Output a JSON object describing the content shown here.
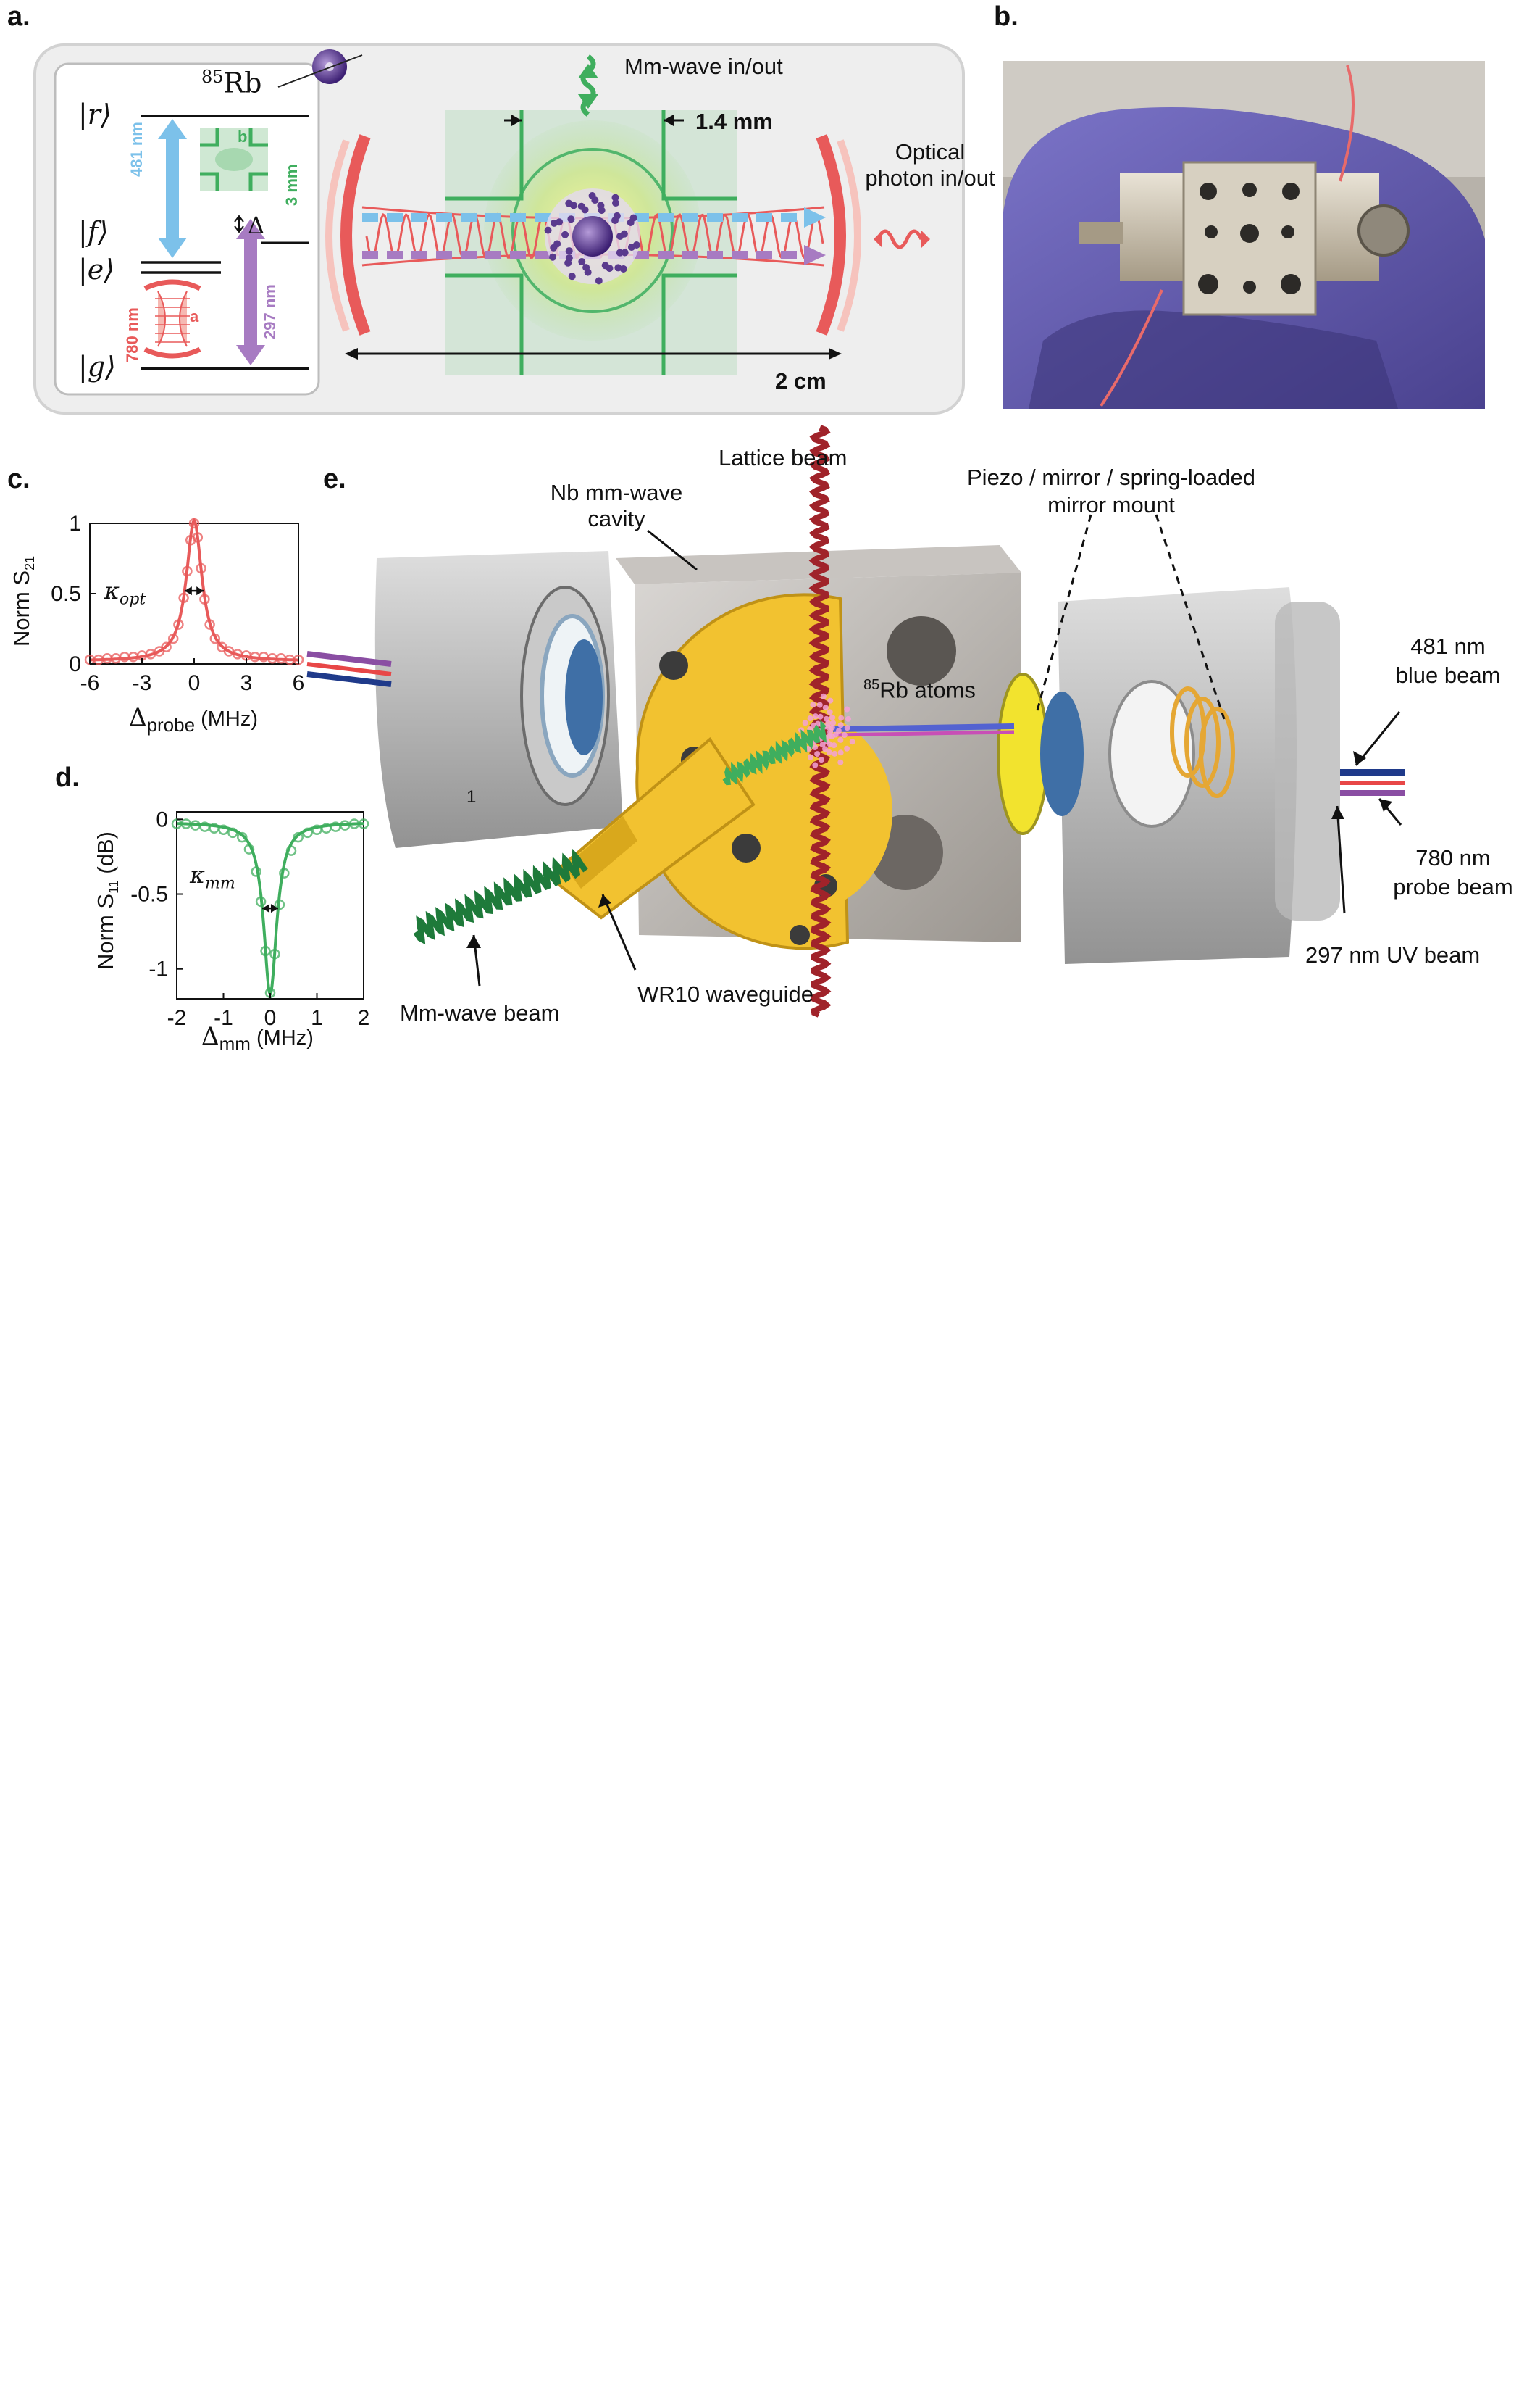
{
  "panels": {
    "a": "a.",
    "b": "b.",
    "c": "c.",
    "d": "d.",
    "e": "e."
  },
  "panel_a": {
    "isotope_sup": "85",
    "isotope": "Rb",
    "state_r": "|r⟩",
    "state_f": "|f⟩",
    "state_e": "|e⟩",
    "state_g": "|g⟩",
    "wl_481": "481 nm",
    "wl_297": "297 nm",
    "wl_780": "780 nm",
    "cavity_a": "a",
    "cavity_b": "b",
    "size_3mm": "3 mm",
    "detuning": "Δ",
    "mmwave_io": "Mm-wave in/out",
    "width_14": "1.4 mm",
    "optical_io": "Optical\nphoton in/out",
    "length_2cm": "2 cm"
  },
  "chart_data": [
    {
      "type": "scatter",
      "panel": "c",
      "ylabel": "Norm S",
      "ylabel_sub": "21",
      "xlabel": "Δ",
      "xlabel_sub": "probe",
      "xlabel_unit": " (MHz)",
      "annotation": "κ",
      "annotation_sub": "opt",
      "xlim": [
        -6,
        6
      ],
      "ylim": [
        0,
        1
      ],
      "xticks": [
        -6,
        -3,
        0,
        3,
        6
      ],
      "yticks": [
        0,
        0.5,
        1
      ],
      "fit": {
        "model": "lorentzian",
        "center": 0,
        "amplitude": 1,
        "offset": 0.02,
        "hwhm": 0.55
      },
      "points_x": [
        -6.0,
        -5.5,
        -5.0,
        -4.5,
        -4.0,
        -3.5,
        -3.0,
        -2.5,
        -2.0,
        -1.6,
        -1.2,
        -0.9,
        -0.6,
        -0.4,
        -0.2,
        0.0,
        0.2,
        0.4,
        0.6,
        0.9,
        1.2,
        1.6,
        2.0,
        2.5,
        3.0,
        3.5,
        4.0,
        4.5,
        5.0,
        5.5,
        6.0
      ],
      "points_y": [
        0.03,
        0.03,
        0.04,
        0.04,
        0.05,
        0.05,
        0.06,
        0.07,
        0.09,
        0.12,
        0.18,
        0.28,
        0.47,
        0.66,
        0.88,
        1.0,
        0.9,
        0.68,
        0.46,
        0.28,
        0.18,
        0.12,
        0.09,
        0.07,
        0.06,
        0.05,
        0.05,
        0.04,
        0.04,
        0.03,
        0.03
      ],
      "color": "#e85a5a"
    },
    {
      "type": "scatter",
      "panel": "d",
      "ylabel": "Norm S",
      "ylabel_sub": "11",
      "ylabel_unit": " (dB)",
      "xlabel": "Δ",
      "xlabel_sub": "mm",
      "xlabel_unit": " (MHz)",
      "annotation": "κ",
      "annotation_sub": "mm",
      "xlim": [
        -2,
        2
      ],
      "ylim": [
        -1.2,
        0.05
      ],
      "xticks": [
        -2,
        -1,
        0,
        1,
        2
      ],
      "yticks": [
        0,
        -0.5,
        -1
      ],
      "fit": {
        "model": "lorentzian",
        "center": 0,
        "amplitude": -1.15,
        "offset": -0.02,
        "hwhm": 0.17
      },
      "points_x": [
        -2.0,
        -1.8,
        -1.6,
        -1.4,
        -1.2,
        -1.0,
        -0.8,
        -0.6,
        -0.45,
        -0.3,
        -0.2,
        -0.1,
        0.0,
        0.1,
        0.2,
        0.3,
        0.45,
        0.6,
        0.8,
        1.0,
        1.2,
        1.4,
        1.6,
        1.8,
        2.0
      ],
      "points_y": [
        -0.03,
        -0.03,
        -0.04,
        -0.05,
        -0.06,
        -0.07,
        -0.09,
        -0.12,
        -0.2,
        -0.35,
        -0.55,
        -0.88,
        -1.16,
        -0.9,
        -0.57,
        -0.36,
        -0.21,
        -0.12,
        -0.09,
        -0.07,
        -0.06,
        -0.05,
        -0.04,
        -0.03,
        -0.03
      ],
      "color": "#3fae5e"
    }
  ],
  "panel_e": {
    "lattice": "Lattice beam",
    "nb_cavity": "Nb mm-wave\ncavity",
    "piezo": "Piezo / mirror / spring-loaded\nmirror mount",
    "rb_sup": "85",
    "rb_atoms": "Rb atoms",
    "blue_beam": "481 nm\nblue beam",
    "probe_beam": "780 nm\nprobe beam",
    "uv_beam": "297 nm UV beam",
    "mm_beam": "Mm-wave beam",
    "waveguide": "WR10 waveguide",
    "hole_label": "1"
  },
  "colors": {
    "blue_481": "#7cc1ea",
    "purple_297": "#a77bc2",
    "red_780": "#e85a5a",
    "green_mm": "#3fae5e",
    "gold": "#f2c230",
    "lattice_red": "#a0232a"
  }
}
